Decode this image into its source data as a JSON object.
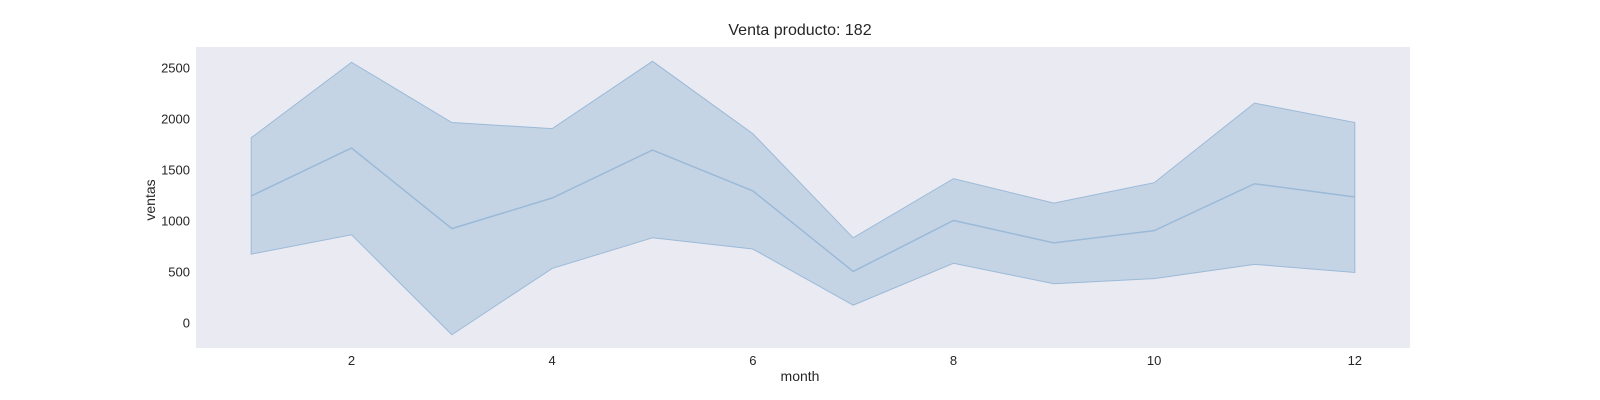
{
  "chart_data": {
    "type": "line",
    "title": "Venta producto: 182",
    "xlabel": "month",
    "ylabel": "ventas",
    "xlim": [
      0.45,
      12.55
    ],
    "ylim": [
      -250,
      2700
    ],
    "xticks": [
      2,
      4,
      6,
      8,
      10,
      12
    ],
    "yticks": [
      0,
      500,
      1000,
      1500,
      2000,
      2500
    ],
    "grid": false,
    "background_color": "#eaeaf2",
    "series": [
      {
        "x": [
          1,
          2,
          3,
          4,
          5,
          6,
          7,
          8,
          9,
          10,
          11,
          12
        ],
        "mean": [
          1240,
          1710,
          920,
          1220,
          1690,
          1290,
          500,
          1000,
          780,
          900,
          1360,
          1230
        ],
        "lower": [
          670,
          860,
          -120,
          530,
          830,
          720,
          170,
          580,
          380,
          430,
          570,
          490
        ],
        "upper": [
          1810,
          2550,
          1960,
          1900,
          2560,
          1850,
          830,
          1410,
          1170,
          1370,
          2150,
          1960
        ],
        "line_color": "#9bbad8",
        "fill_color": "#c2d3e4"
      }
    ]
  }
}
